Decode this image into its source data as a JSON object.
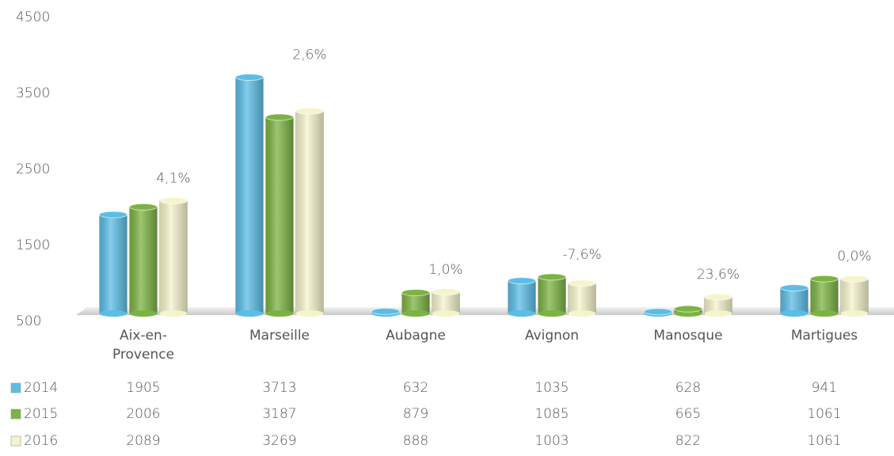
{
  "chart_data": {
    "type": "bar",
    "categories": [
      "Aix-en-Provence",
      "Marseille",
      "Aubagne",
      "Avignon",
      "Manosque",
      "Martigues"
    ],
    "series": [
      {
        "name": "2014",
        "color": "#5bbde6",
        "values": [
          1905,
          3713,
          632,
          1035,
          628,
          941
        ]
      },
      {
        "name": "2015",
        "color": "#7cb342",
        "values": [
          2006,
          3187,
          879,
          1085,
          665,
          1061
        ]
      },
      {
        "name": "2016",
        "color": "#f6f4cc",
        "values": [
          2089,
          3269,
          888,
          1003,
          822,
          1061
        ]
      }
    ],
    "annotations": [
      "4,1%",
      "2,6%",
      "1,0%",
      "-7,6%",
      "23,6%",
      "0,0%"
    ],
    "ylim": [
      500,
      4500
    ],
    "yticks": [
      500,
      1500,
      2500,
      3500,
      4500
    ],
    "grid": false
  }
}
